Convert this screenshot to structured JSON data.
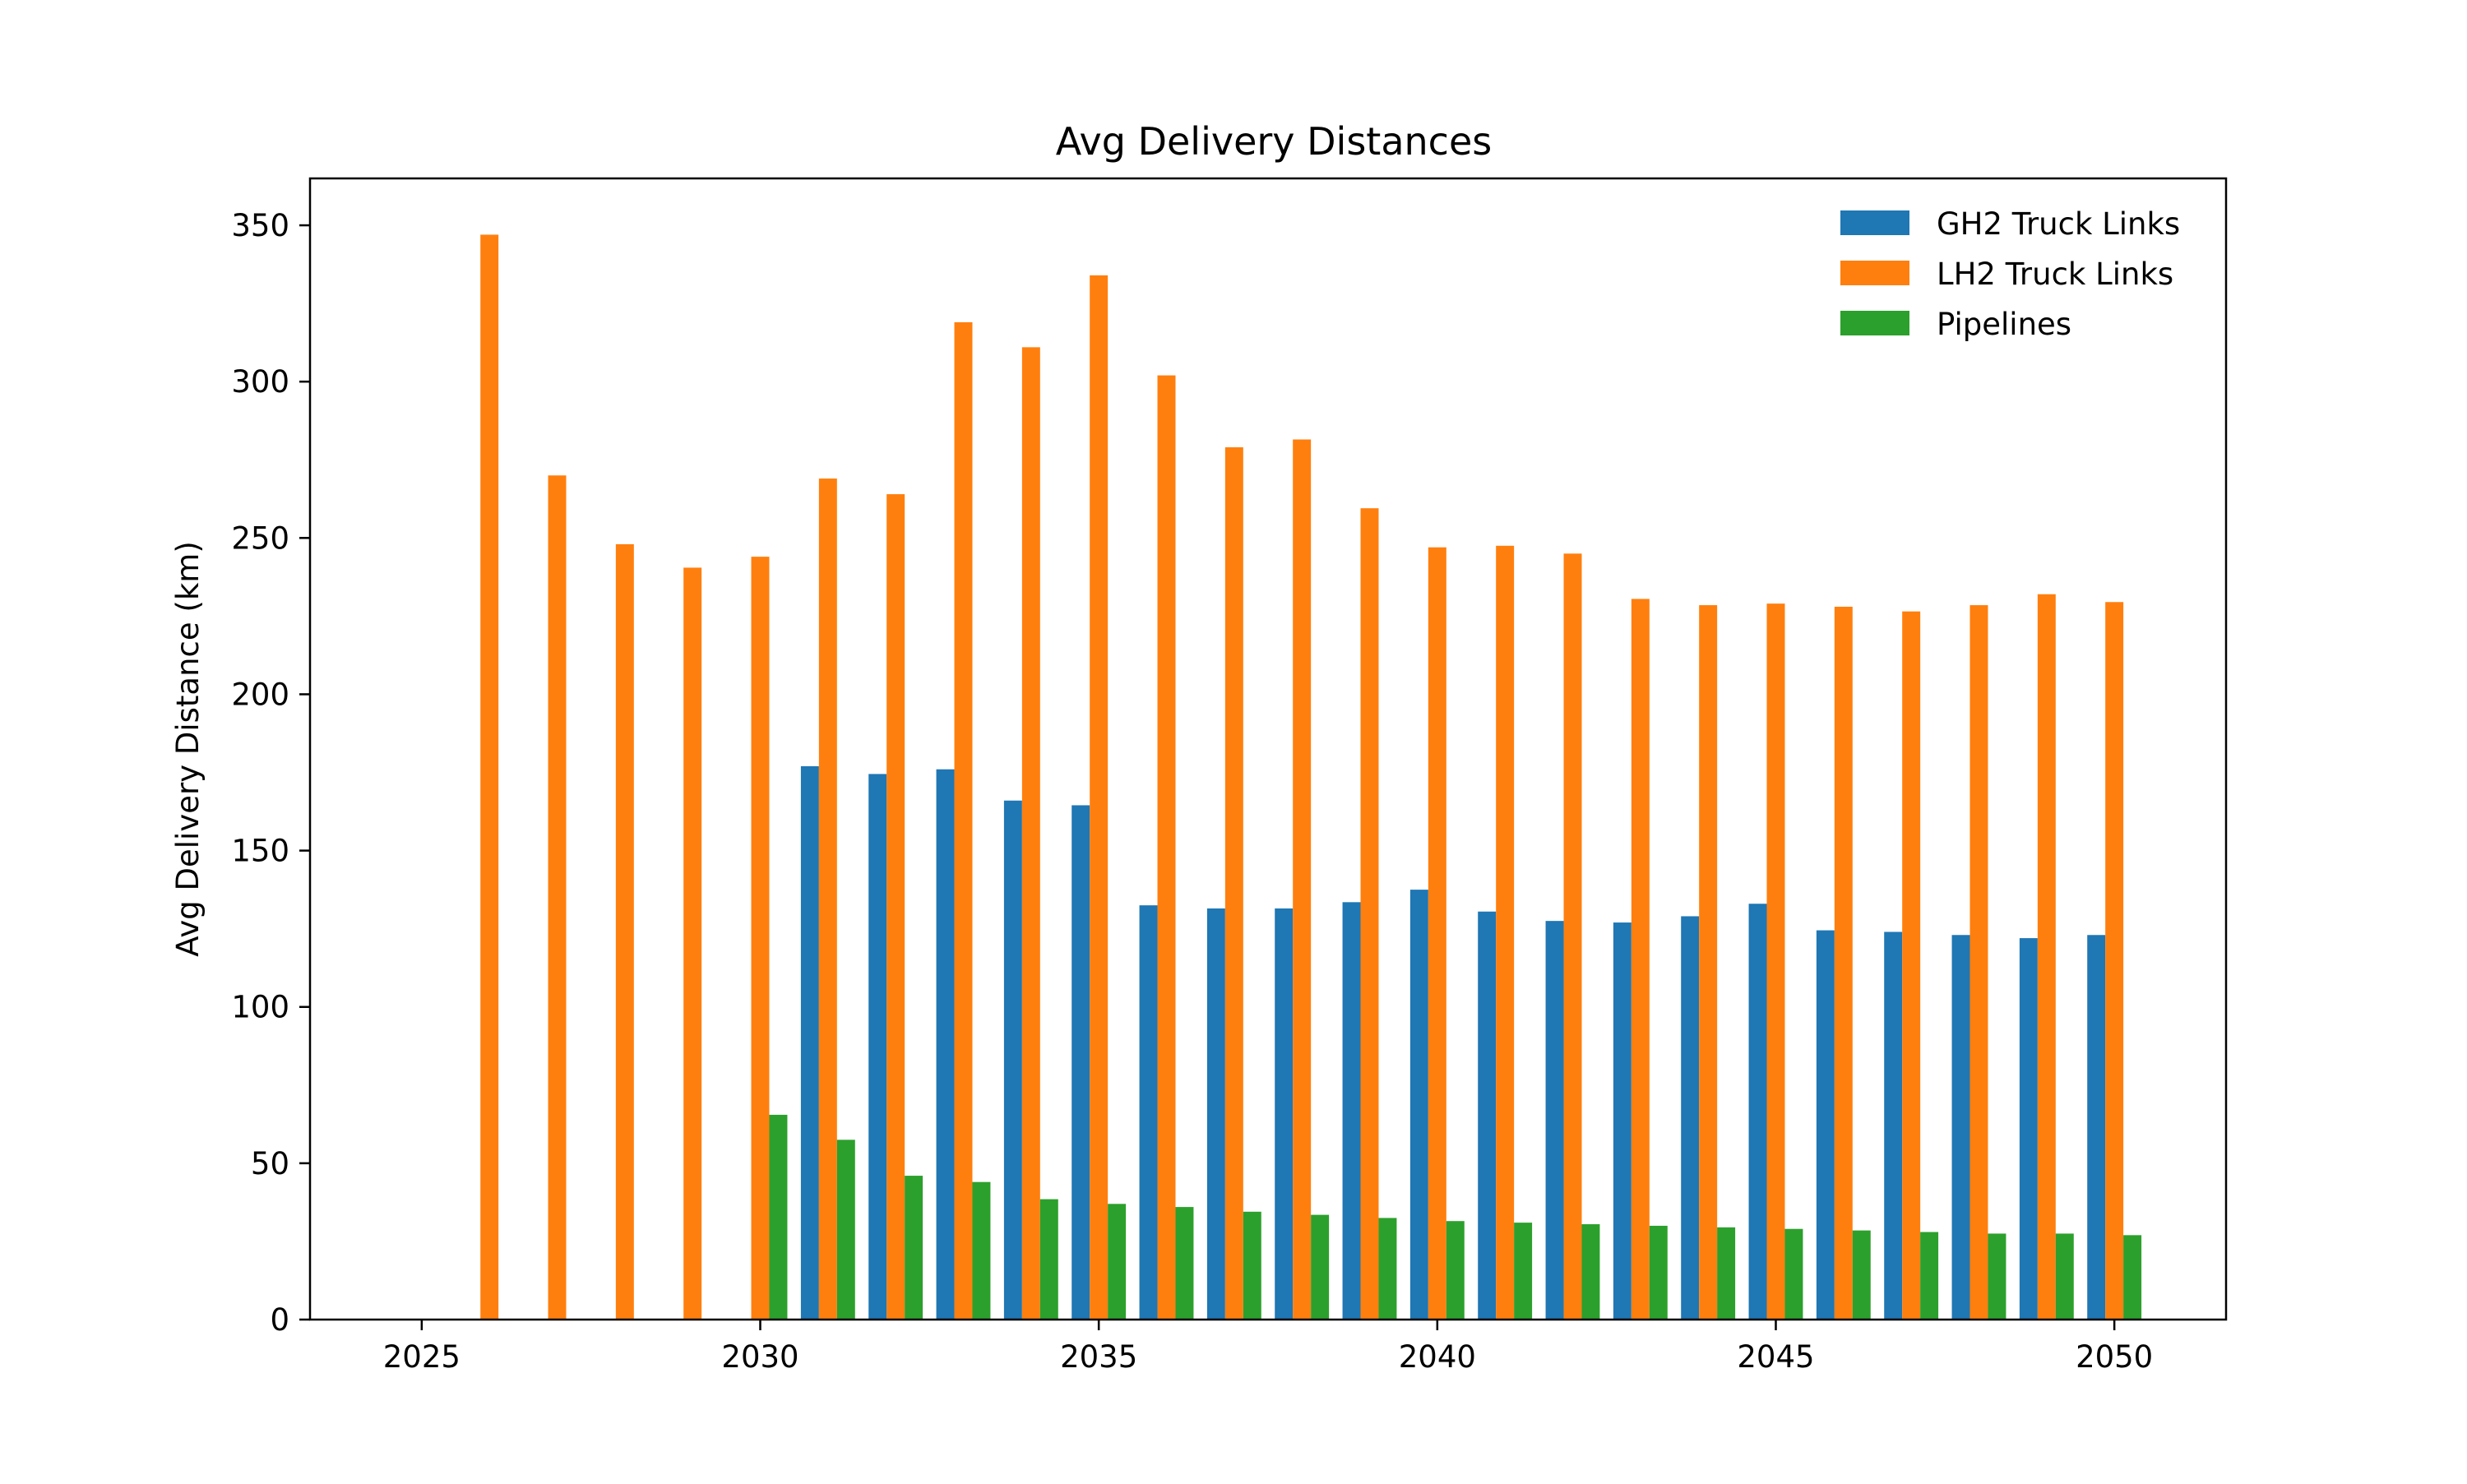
{
  "chart_data": {
    "type": "bar",
    "title": "Avg Delivery Distances",
    "xlabel": "",
    "ylabel": "Avg Delivery Distance (km)",
    "xlim": [
      2023.35,
      2051.65
    ],
    "ylim": [
      0,
      365
    ],
    "x_ticks": [
      2025,
      2030,
      2035,
      2040,
      2045,
      2050
    ],
    "y_ticks": [
      0,
      50,
      100,
      150,
      200,
      250,
      300,
      350
    ],
    "grid": false,
    "legend_position": "top-right",
    "categories": [
      2025,
      2026,
      2027,
      2028,
      2029,
      2030,
      2031,
      2032,
      2033,
      2034,
      2035,
      2036,
      2037,
      2038,
      2039,
      2040,
      2041,
      2042,
      2043,
      2044,
      2045,
      2046,
      2047,
      2048,
      2049,
      2050
    ],
    "series": [
      {
        "name": "GH2 Truck Links",
        "color": "#1f77b4",
        "values": [
          null,
          null,
          null,
          null,
          null,
          null,
          177,
          174.5,
          176,
          166,
          164.5,
          132.5,
          131.5,
          131.5,
          133.5,
          137.5,
          130.5,
          127.5,
          127,
          129,
          133,
          124.5,
          124,
          123,
          122,
          123
        ]
      },
      {
        "name": "LH2 Truck Links",
        "color": "#ff7f0e",
        "values": [
          null,
          347,
          270,
          248,
          240.5,
          244,
          269,
          264,
          319,
          311,
          334,
          302,
          279,
          281.5,
          259.5,
          247,
          247.5,
          245,
          230.5,
          228.5,
          229,
          228,
          226.5,
          228.5,
          232,
          229.5
        ]
      },
      {
        "name": "Pipelines",
        "color": "#2ca02c",
        "values": [
          null,
          null,
          null,
          null,
          null,
          65.5,
          57.5,
          46,
          44,
          38.5,
          37,
          36,
          34.5,
          33.5,
          32.5,
          31.5,
          31,
          30.5,
          30,
          29.5,
          29,
          28.5,
          28,
          27.5,
          27.5,
          27
        ]
      }
    ]
  }
}
